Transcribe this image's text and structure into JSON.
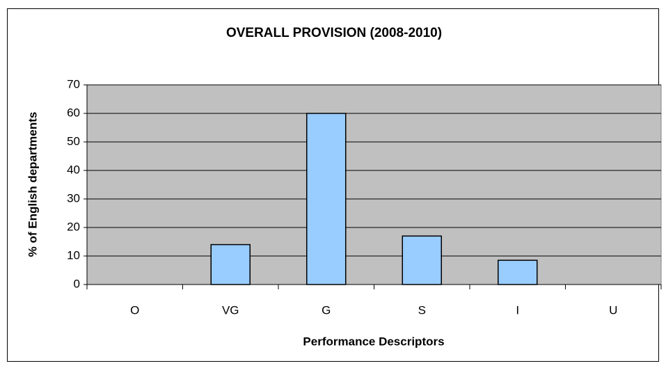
{
  "chart_data": {
    "type": "bar",
    "title": "OVERALL PROVISION (2008-2010)",
    "x_label": "Performance Descriptors",
    "y_label": "% of English departments",
    "categories": [
      "O",
      "VG",
      "G",
      "S",
      "I",
      "U"
    ],
    "values": [
      0,
      14,
      60,
      17,
      8.5,
      0
    ],
    "color": "#99ccff",
    "plot_background": "#c0c0c0",
    "ylim": [
      0,
      70
    ],
    "yticks": [
      0,
      10,
      20,
      30,
      40,
      50,
      60,
      70
    ],
    "grid": true
  }
}
